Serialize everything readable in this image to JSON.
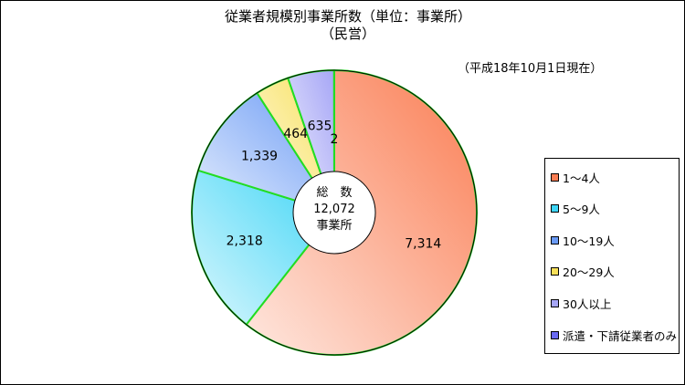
{
  "chart_data": {
    "type": "pie",
    "title": "従業者規模別事業所数（単位：事業所）",
    "subtitle": "（民営）",
    "note": "（平成18年10月1日現在）",
    "center_label": {
      "line1": "総　数",
      "line2": "12,072",
      "line3": "事業所"
    },
    "categories": [
      "1～4人",
      "5～9人",
      "10～19人",
      "20～29人",
      "30人以上",
      "派遣・下請従業者のみ"
    ],
    "values": [
      7314,
      2318,
      1339,
      464,
      635,
      2
    ],
    "value_labels": [
      "7,314",
      "2,318",
      "1,339",
      "464",
      "635",
      "2"
    ],
    "colors": [
      "#fa7d53",
      "#3ed5f6",
      "#6a9af5",
      "#f8e05a",
      "#a6a6f6",
      "#6a6af2"
    ],
    "legend_position": "right"
  }
}
